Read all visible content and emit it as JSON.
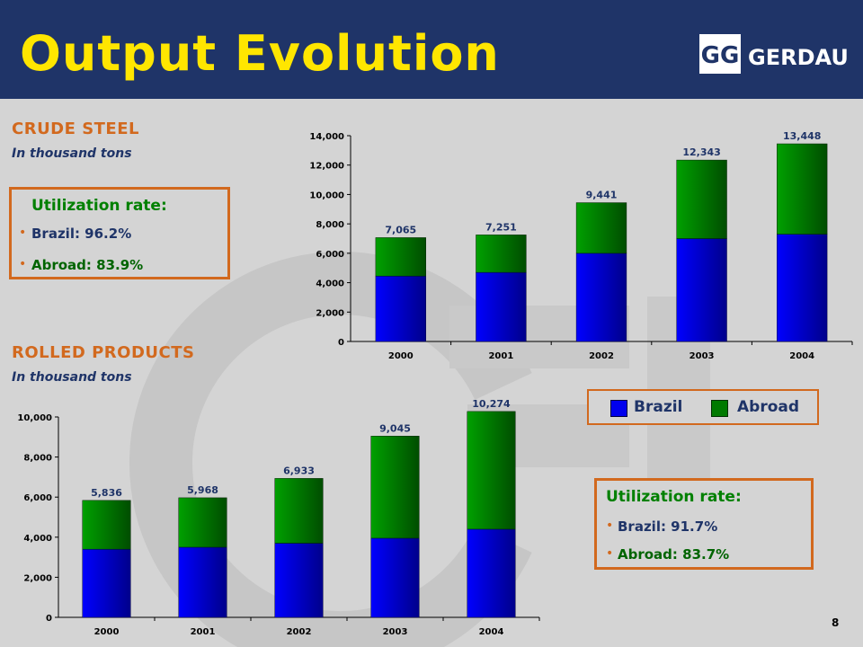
{
  "title": "Output Evolution",
  "logo_text": "GERDAU",
  "logo_mark": "GG",
  "page_number": "8",
  "colors": {
    "header_bg": "#1f3468",
    "title": "#ffe600",
    "accent": "#d2691e",
    "brazil": "#0000ee",
    "abroad": "#007a00"
  },
  "crude_steel": {
    "title": "CRUDE STEEL",
    "subtitle": "In thousand tons",
    "utilization": {
      "title": "Utilization rate:",
      "brazil": "Brazil: 96.2%",
      "abroad": "Abroad: 83.9%"
    }
  },
  "rolled_products": {
    "title": "ROLLED PRODUCTS",
    "subtitle": "In thousand tons",
    "utilization": {
      "title": "Utilization rate:",
      "brazil": "Brazil: 91.7%",
      "abroad": "Abroad: 83.7%"
    }
  },
  "legend": {
    "brazil": "Brazil",
    "abroad": "Abroad"
  },
  "chart_data": [
    {
      "type": "bar",
      "stacked": true,
      "categories": [
        "2000",
        "2001",
        "2002",
        "2003",
        "2004"
      ],
      "series": [
        {
          "name": "Brazil",
          "values": [
            4450,
            4700,
            6000,
            7000,
            7300
          ]
        },
        {
          "name": "Abroad",
          "values": [
            2615,
            2551,
            3441,
            5343,
            6148
          ]
        }
      ],
      "totals": [
        7065,
        7251,
        9441,
        12343,
        13448
      ],
      "total_labels": [
        "7,065",
        "7,251",
        "9,441",
        "12,343",
        "13,448"
      ],
      "yticks": [
        "0",
        "2,000",
        "4,000",
        "6,000",
        "8,000",
        "10,000",
        "12,000",
        "14,000"
      ],
      "ylim": [
        0,
        14000
      ],
      "legend": "bottom-right"
    },
    {
      "type": "bar",
      "stacked": true,
      "categories": [
        "2000",
        "2001",
        "2002",
        "2003",
        "2004"
      ],
      "series": [
        {
          "name": "Brazil",
          "values": [
            3400,
            3500,
            3700,
            3950,
            4400
          ]
        },
        {
          "name": "Abroad",
          "values": [
            2436,
            2468,
            3233,
            5095,
            5874
          ]
        }
      ],
      "totals": [
        5836,
        5968,
        6933,
        9045,
        10274
      ],
      "total_labels": [
        "5,836",
        "5,968",
        "6,933",
        "9,045",
        "10,274"
      ],
      "yticks": [
        "0",
        "2,000",
        "4,000",
        "6,000",
        "8,000",
        "10,000"
      ],
      "ylim": [
        0,
        10000
      ],
      "legend": "top-right"
    }
  ]
}
